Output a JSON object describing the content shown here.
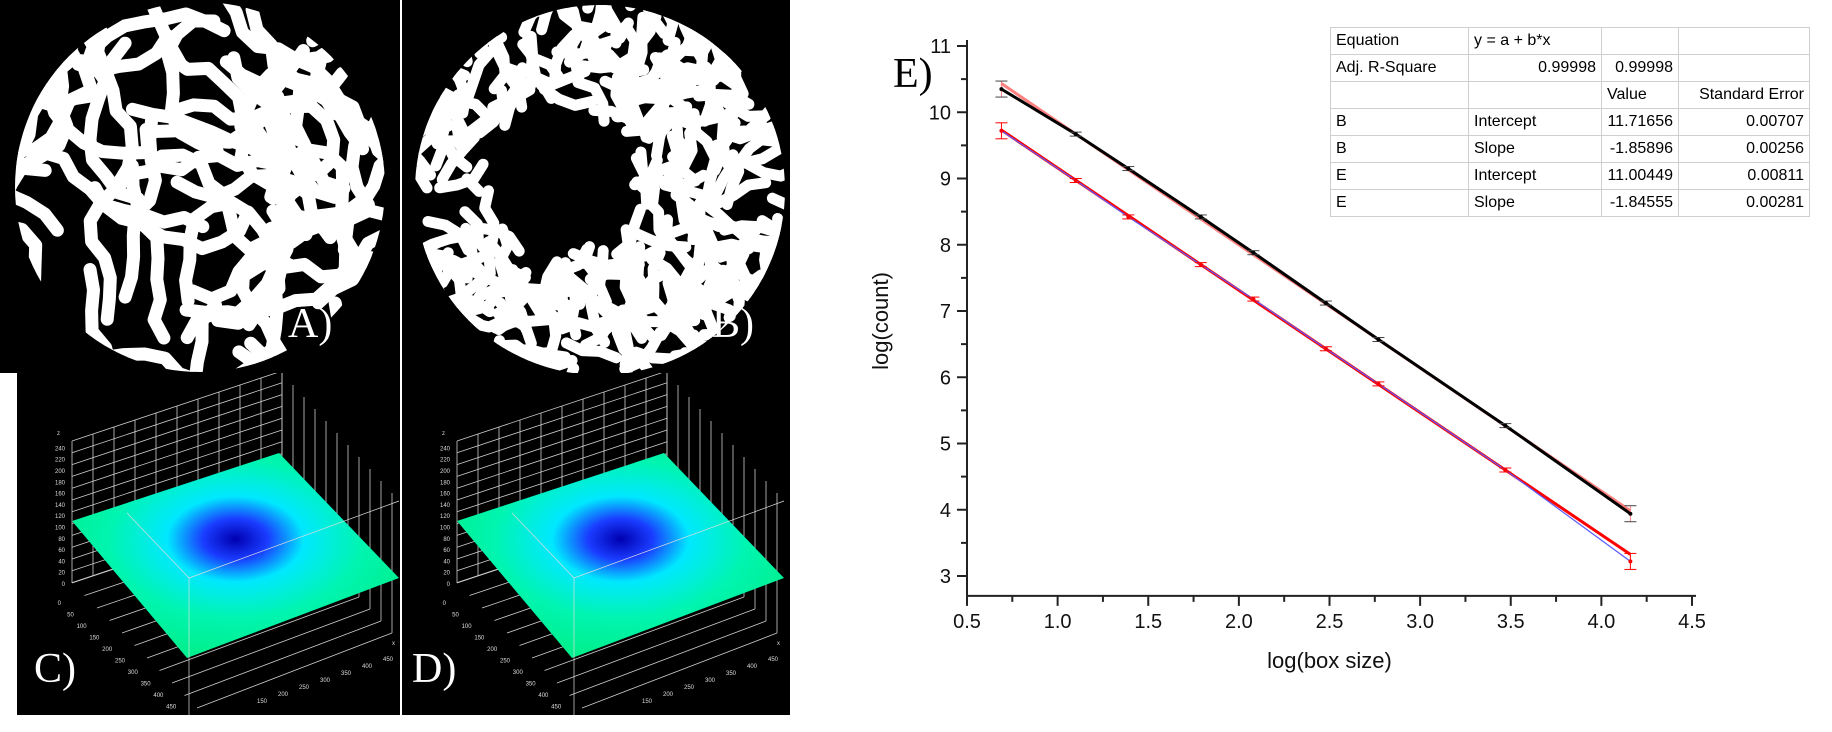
{
  "panels": {
    "a_label": "A)",
    "b_label": "B)",
    "c_label": "C)",
    "d_label": "D)",
    "e_label": "E)",
    "surface_z_ticks": [
      "0",
      "20",
      "40",
      "60",
      "80",
      "100",
      "120",
      "140",
      "160",
      "180",
      "200",
      "220",
      "240"
    ],
    "surface_z_axis": "z",
    "surface_y_ticks": [
      "0",
      "50",
      "100",
      "150",
      "200",
      "250",
      "300",
      "350",
      "400",
      "450"
    ],
    "surface_x_ticks": [
      "150",
      "200",
      "250",
      "300",
      "350",
      "400",
      "450"
    ],
    "surface_x_axis": "x"
  },
  "fit_table": {
    "rows": [
      [
        "Equation",
        "y = a + b*x",
        "",
        ""
      ],
      [
        "Adj. R-Square",
        "0.99998",
        "0.99998",
        ""
      ],
      [
        "",
        "",
        "Value",
        "Standard Error"
      ],
      [
        "B",
        "Intercept",
        "11.71656",
        "0.00707"
      ],
      [
        "B",
        "Slope",
        "-1.85896",
        "0.00256"
      ],
      [
        "E",
        "Intercept",
        "11.00449",
        "0.00811"
      ],
      [
        "E",
        "Slope",
        "-1.84555",
        "0.00281"
      ]
    ]
  },
  "chart_data": {
    "type": "line",
    "title": "",
    "xlabel": "log(box size)",
    "ylabel": "log(count)",
    "xlim": [
      0.5,
      4.5
    ],
    "ylim": [
      2.7,
      11
    ],
    "xticks": [
      "0.5",
      "1.0",
      "1.5",
      "2.0",
      "2.5",
      "3.0",
      "3.5",
      "4.0",
      "4.5"
    ],
    "yticks": [
      "3",
      "4",
      "5",
      "6",
      "7",
      "8",
      "9",
      "10",
      "11"
    ],
    "x": [
      0.69,
      1.1,
      1.39,
      1.79,
      2.08,
      2.48,
      2.77,
      3.47,
      4.16
    ],
    "series": [
      {
        "name": "B",
        "color": "#000000",
        "fit_color": "#ff8080",
        "values": [
          10.35,
          9.67,
          9.15,
          8.42,
          7.88,
          7.12,
          6.57,
          5.27,
          3.94
        ],
        "fit": {
          "intercept": 11.71656,
          "slope": -1.85896
        }
      },
      {
        "name": "E",
        "color": "#5a5aff",
        "fit_color": "#ff0000",
        "values": [
          9.72,
          8.97,
          8.42,
          7.7,
          7.18,
          6.43,
          5.9,
          4.6,
          3.22
        ],
        "fit": {
          "intercept": 11.00449,
          "slope": -1.84555
        }
      }
    ],
    "grid": false
  }
}
